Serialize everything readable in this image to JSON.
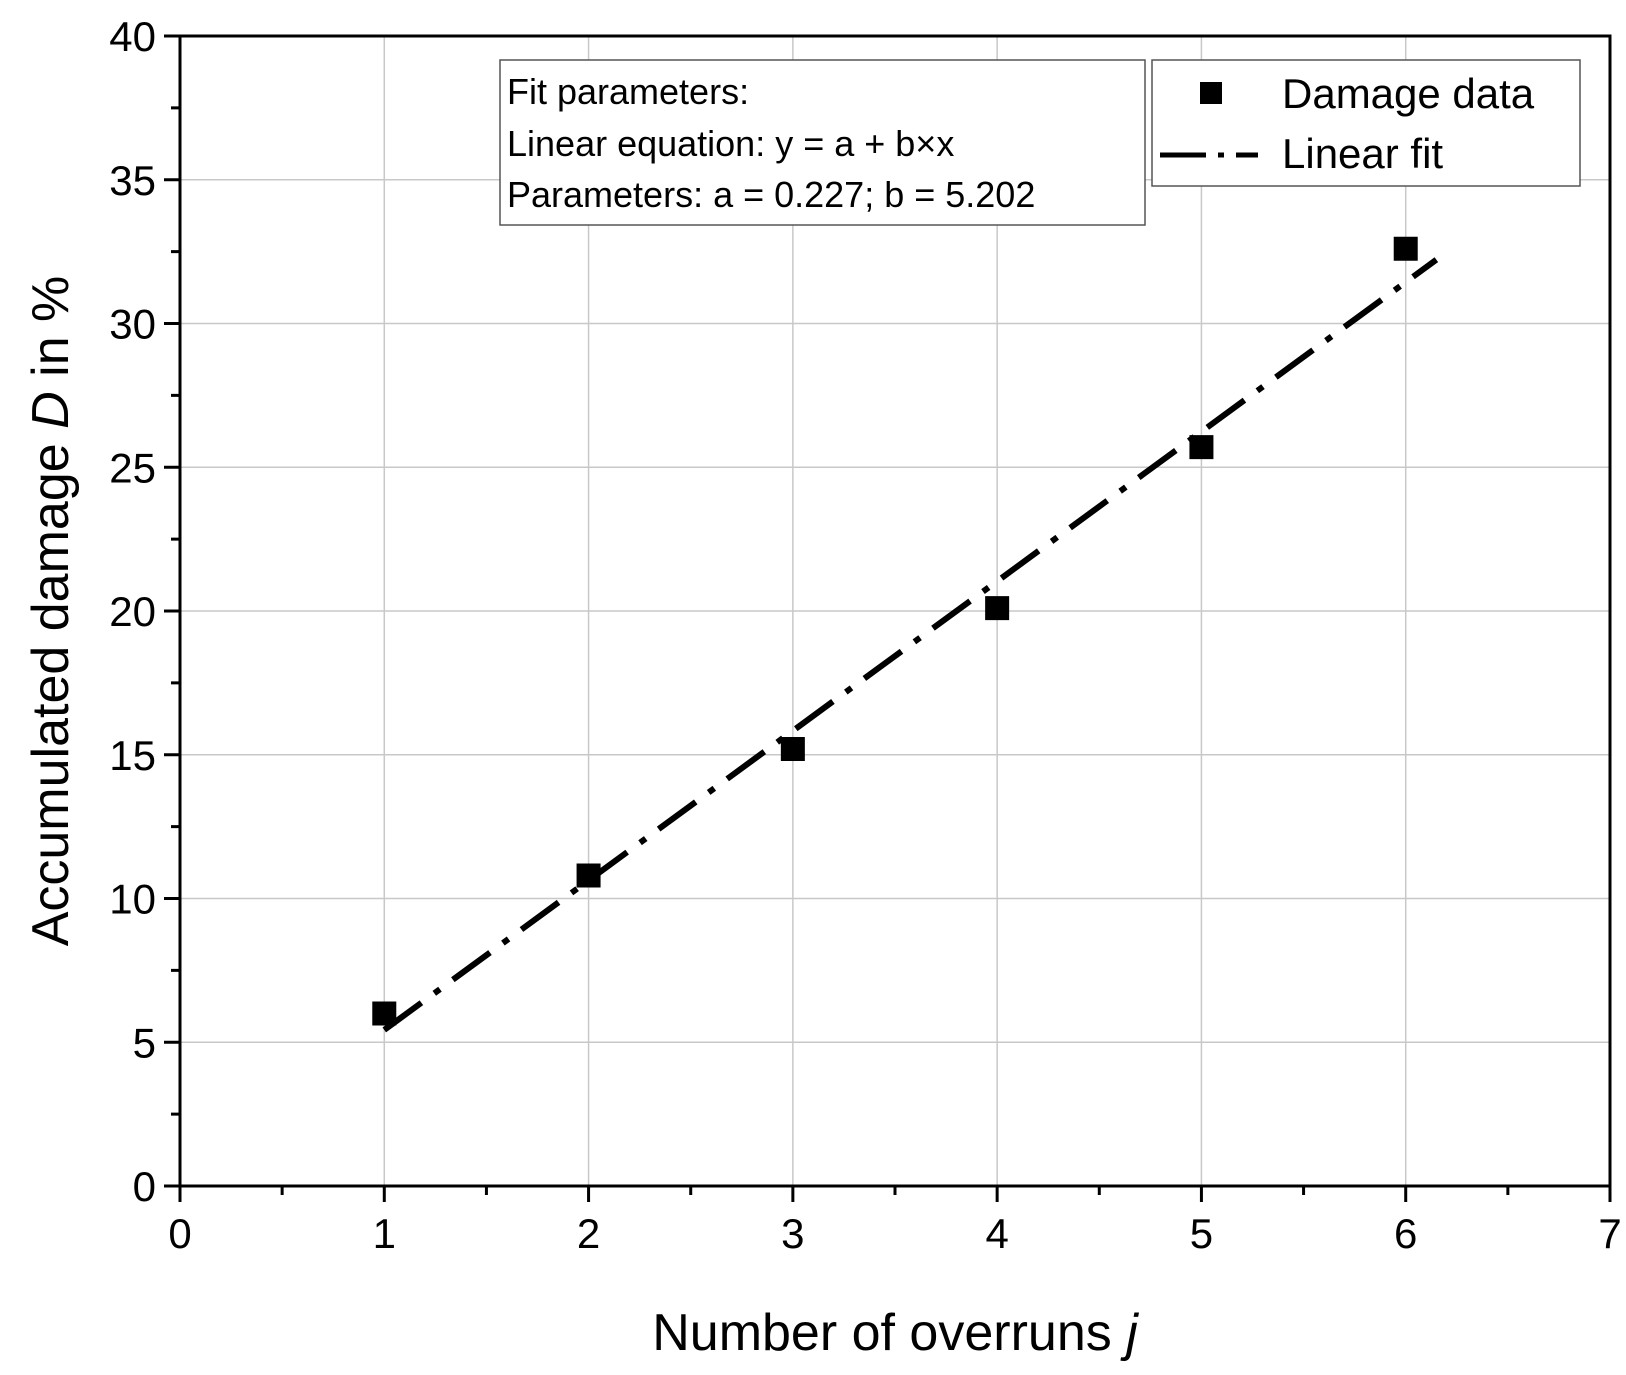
{
  "chart_data": {
    "type": "scatter",
    "title": "",
    "xlabel": "Number of overruns",
    "xlabel_var": "j",
    "ylabel": "Accumulated damage",
    "ylabel_var": "D",
    "ylabel_suffix": "in %",
    "xlim": [
      0,
      7
    ],
    "ylim": [
      0,
      40
    ],
    "x_ticks": [
      0,
      1,
      2,
      3,
      4,
      5,
      6,
      7
    ],
    "y_ticks": [
      0,
      5,
      10,
      15,
      20,
      25,
      30,
      35,
      40
    ],
    "grid": true,
    "series": [
      {
        "name": "Damage data",
        "type": "scatter",
        "marker": "square",
        "color": "#000000",
        "x": [
          1,
          2,
          3,
          4,
          5,
          6
        ],
        "y": [
          6.0,
          10.8,
          15.2,
          20.1,
          25.7,
          32.6
        ]
      },
      {
        "name": "Linear fit",
        "type": "line",
        "style": "dash-dot",
        "color": "#000000",
        "intercept": 0.227,
        "slope": 5.202,
        "x_range": [
          1,
          6.15
        ]
      }
    ],
    "annotation": {
      "lines": [
        "Fit parameters:",
        "Linear equation: y = a + b×x",
        "Parameters: a = 0.227; b = 5.202"
      ]
    },
    "legend": {
      "position": "top-right",
      "entries": [
        "Damage data",
        "Linear fit"
      ]
    }
  }
}
